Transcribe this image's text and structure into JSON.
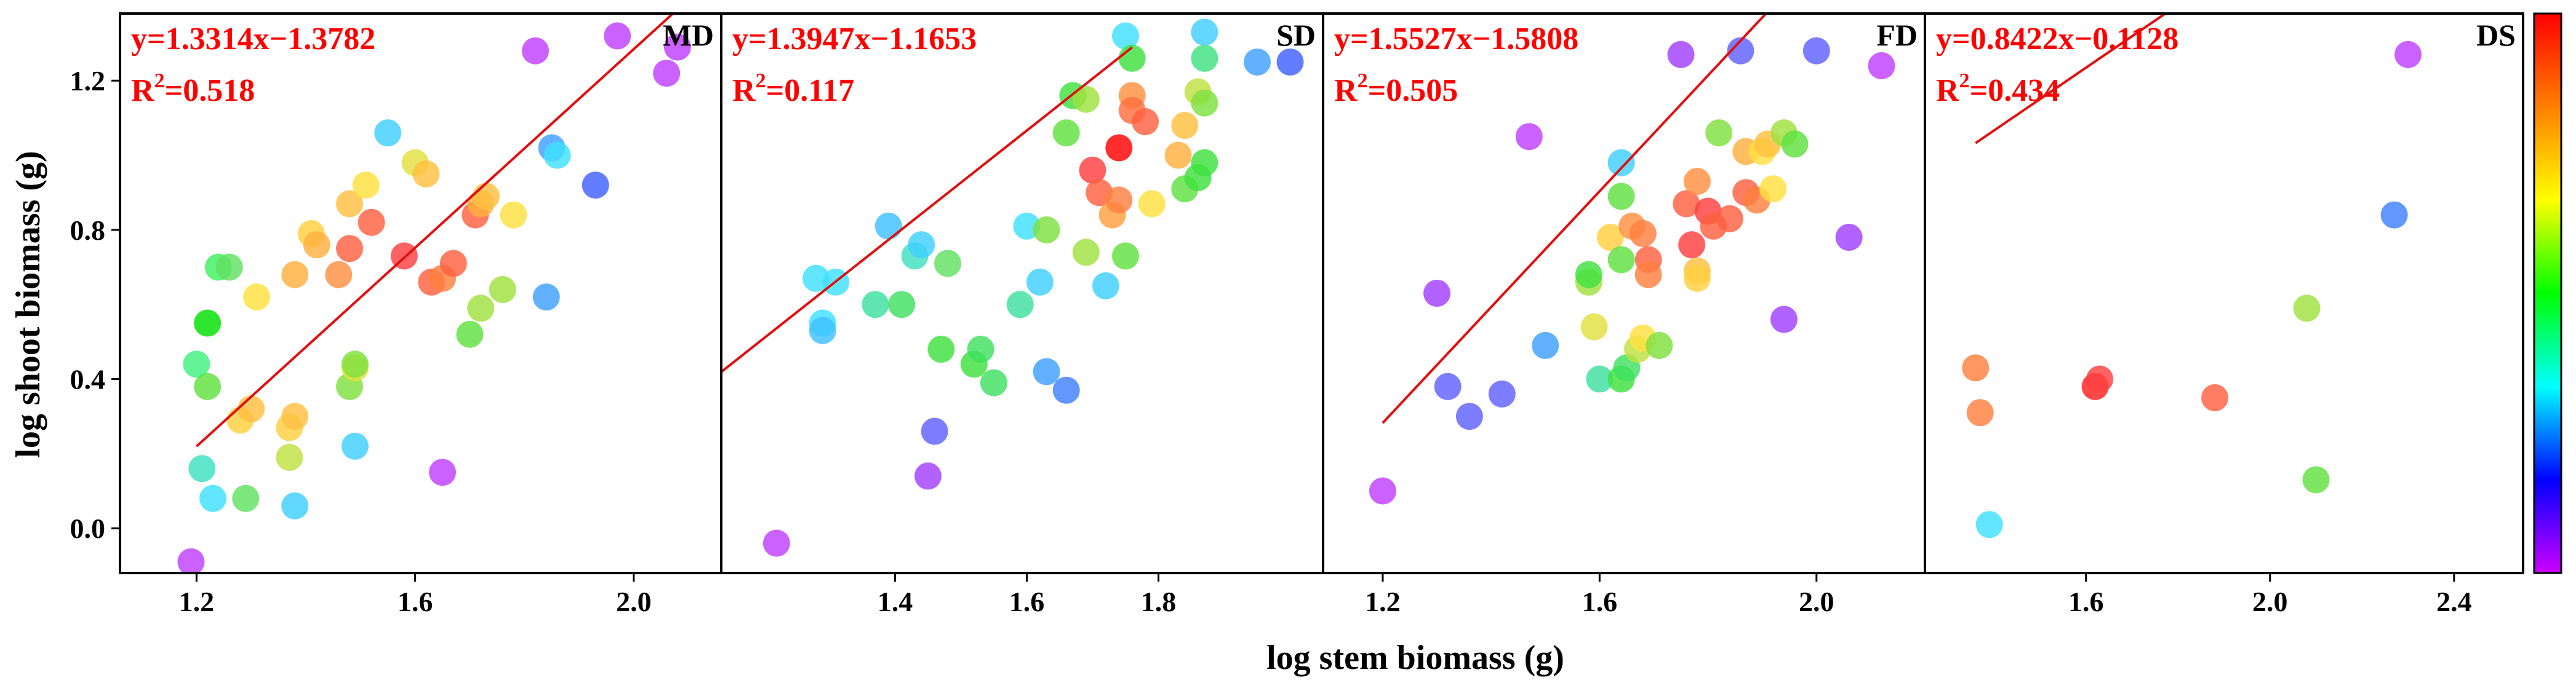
{
  "chart_data": {
    "type": "scatter",
    "xlabel": "log stem biomass (g)",
    "ylabel": "log shoot biomass (g)",
    "colorbar": {
      "present": true,
      "colors": [
        "#ff0000",
        "#ff7f00",
        "#ffff00",
        "#00ff00",
        "#00ffff",
        "#0000ff",
        "#cc00ff"
      ]
    },
    "y_ticks": [
      "0.0",
      "0.4",
      "0.8",
      "1.2"
    ],
    "ylim": [
      -0.12,
      1.38
    ],
    "fit_color": "#e01010",
    "panels": [
      {
        "label": "MD",
        "equation": "y=1.3314x−1.3782",
        "r2_prefix": "R",
        "r2_exp": "2",
        "r2_value": "=0.518",
        "xlim": [
          1.06,
          2.16
        ],
        "x_ticks": [
          "1.2",
          "1.6",
          "2.0"
        ],
        "fit_line": {
          "slope": 1.3314,
          "intercept": -1.3782,
          "x_range": [
            1.2,
            2.07
          ]
        },
        "points": [
          {
            "x": 1.19,
            "y": -0.09,
            "c": "#c040ff"
          },
          {
            "x": 1.2,
            "y": 0.44,
            "c": "#40f080"
          },
          {
            "x": 1.21,
            "y": 0.16,
            "c": "#40e0c0"
          },
          {
            "x": 1.22,
            "y": 0.55,
            "c": "#00e000"
          },
          {
            "x": 1.22,
            "y": 0.38,
            "c": "#60e040"
          },
          {
            "x": 1.23,
            "y": 0.08,
            "c": "#40e0ff"
          },
          {
            "x": 1.24,
            "y": 0.7,
            "c": "#40f060"
          },
          {
            "x": 1.26,
            "y": 0.7,
            "c": "#60e060"
          },
          {
            "x": 1.28,
            "y": 0.29,
            "c": "#ffd040"
          },
          {
            "x": 1.29,
            "y": 0.08,
            "c": "#60e060"
          },
          {
            "x": 1.3,
            "y": 0.32,
            "c": "#ffc040"
          },
          {
            "x": 1.31,
            "y": 0.62,
            "c": "#ffe040"
          },
          {
            "x": 1.37,
            "y": 0.19,
            "c": "#c0e040"
          },
          {
            "x": 1.37,
            "y": 0.27,
            "c": "#ffd040"
          },
          {
            "x": 1.38,
            "y": 0.3,
            "c": "#ffc040"
          },
          {
            "x": 1.38,
            "y": 0.68,
            "c": "#ffb040"
          },
          {
            "x": 1.38,
            "y": 0.06,
            "c": "#40d0ff"
          },
          {
            "x": 1.41,
            "y": 0.79,
            "c": "#ffd040"
          },
          {
            "x": 1.42,
            "y": 0.76,
            "c": "#ffb040"
          },
          {
            "x": 1.46,
            "y": 0.68,
            "c": "#ff9040"
          },
          {
            "x": 1.48,
            "y": 0.87,
            "c": "#ffc040"
          },
          {
            "x": 1.48,
            "y": 0.75,
            "c": "#ff6040"
          },
          {
            "x": 1.48,
            "y": 0.38,
            "c": "#80e040"
          },
          {
            "x": 1.49,
            "y": 0.43,
            "c": "#e0e040"
          },
          {
            "x": 1.49,
            "y": 0.44,
            "c": "#80e040"
          },
          {
            "x": 1.49,
            "y": 0.22,
            "c": "#40d0ff"
          },
          {
            "x": 1.51,
            "y": 0.92,
            "c": "#ffe040"
          },
          {
            "x": 1.52,
            "y": 0.82,
            "c": "#ff6040"
          },
          {
            "x": 1.55,
            "y": 1.06,
            "c": "#40d0ff"
          },
          {
            "x": 1.58,
            "y": 0.73,
            "c": "#ff4040"
          },
          {
            "x": 1.6,
            "y": 0.98,
            "c": "#e0e040"
          },
          {
            "x": 1.62,
            "y": 0.95,
            "c": "#ffc040"
          },
          {
            "x": 1.63,
            "y": 0.66,
            "c": "#ff6040"
          },
          {
            "x": 1.65,
            "y": 0.67,
            "c": "#ff8040"
          },
          {
            "x": 1.65,
            "y": 0.15,
            "c": "#c040ff"
          },
          {
            "x": 1.67,
            "y": 0.71,
            "c": "#ff6040"
          },
          {
            "x": 1.7,
            "y": 0.52,
            "c": "#60e040"
          },
          {
            "x": 1.71,
            "y": 0.84,
            "c": "#ff6040"
          },
          {
            "x": 1.72,
            "y": 0.87,
            "c": "#ffb040"
          },
          {
            "x": 1.72,
            "y": 0.59,
            "c": "#a0e040"
          },
          {
            "x": 1.73,
            "y": 0.89,
            "c": "#ffc040"
          },
          {
            "x": 1.76,
            "y": 0.64,
            "c": "#a0e040"
          },
          {
            "x": 1.78,
            "y": 0.84,
            "c": "#ffe040"
          },
          {
            "x": 1.82,
            "y": 1.28,
            "c": "#c040ff"
          },
          {
            "x": 1.84,
            "y": 0.62,
            "c": "#40a0ff"
          },
          {
            "x": 1.85,
            "y": 1.02,
            "c": "#40a0ff"
          },
          {
            "x": 1.86,
            "y": 1.0,
            "c": "#40e0ff"
          },
          {
            "x": 1.93,
            "y": 0.92,
            "c": "#4060ff"
          },
          {
            "x": 1.97,
            "y": 1.32,
            "c": "#c040ff"
          },
          {
            "x": 2.06,
            "y": 1.22,
            "c": "#c040ff"
          },
          {
            "x": 2.08,
            "y": 1.29,
            "c": "#c040ff"
          }
        ]
      },
      {
        "label": "SD",
        "equation": "y=1.3947x−1.1653",
        "r2_prefix": "R",
        "r2_exp": "2",
        "r2_value": "=0.117",
        "xlim": [
          1.136,
          2.05
        ],
        "x_ticks": [
          "1.4",
          "1.6",
          "1.8"
        ],
        "fit_line": {
          "slope": 1.3947,
          "intercept": -1.1653,
          "x_range": [
            1.08,
            1.76
          ]
        },
        "points": [
          {
            "x": 1.22,
            "y": -0.04,
            "c": "#c040ff"
          },
          {
            "x": 1.28,
            "y": 0.67,
            "c": "#40e0ff"
          },
          {
            "x": 1.29,
            "y": 0.55,
            "c": "#40e0ff"
          },
          {
            "x": 1.29,
            "y": 0.53,
            "c": "#40c0ff"
          },
          {
            "x": 1.31,
            "y": 0.66,
            "c": "#40e0ff"
          },
          {
            "x": 1.37,
            "y": 0.6,
            "c": "#40e0a0"
          },
          {
            "x": 1.39,
            "y": 0.81,
            "c": "#40c0ff"
          },
          {
            "x": 1.41,
            "y": 0.6,
            "c": "#40e060"
          },
          {
            "x": 1.43,
            "y": 0.73,
            "c": "#40e0c0"
          },
          {
            "x": 1.44,
            "y": 0.76,
            "c": "#40d0ff"
          },
          {
            "x": 1.45,
            "y": 0.14,
            "c": "#a040ff"
          },
          {
            "x": 1.46,
            "y": 0.26,
            "c": "#6060ff"
          },
          {
            "x": 1.47,
            "y": 0.48,
            "c": "#40e040"
          },
          {
            "x": 1.48,
            "y": 0.71,
            "c": "#60e060"
          },
          {
            "x": 1.52,
            "y": 0.44,
            "c": "#40e040"
          },
          {
            "x": 1.53,
            "y": 0.48,
            "c": "#40e060"
          },
          {
            "x": 1.55,
            "y": 0.39,
            "c": "#40e060"
          },
          {
            "x": 1.59,
            "y": 0.6,
            "c": "#40e0a0"
          },
          {
            "x": 1.6,
            "y": 0.81,
            "c": "#40e0ff"
          },
          {
            "x": 1.62,
            "y": 0.66,
            "c": "#40d0ff"
          },
          {
            "x": 1.63,
            "y": 0.42,
            "c": "#40a0ff"
          },
          {
            "x": 1.63,
            "y": 0.8,
            "c": "#80e040"
          },
          {
            "x": 1.66,
            "y": 1.06,
            "c": "#60e040"
          },
          {
            "x": 1.66,
            "y": 0.37,
            "c": "#4080ff"
          },
          {
            "x": 1.67,
            "y": 1.16,
            "c": "#40e040"
          },
          {
            "x": 1.69,
            "y": 1.15,
            "c": "#a0e040"
          },
          {
            "x": 1.69,
            "y": 0.74,
            "c": "#a0e040"
          },
          {
            "x": 1.7,
            "y": 0.96,
            "c": "#ff4040"
          },
          {
            "x": 1.71,
            "y": 0.9,
            "c": "#ff6040"
          },
          {
            "x": 1.72,
            "y": 0.65,
            "c": "#40d0ff"
          },
          {
            "x": 1.73,
            "y": 0.84,
            "c": "#ffa040"
          },
          {
            "x": 1.74,
            "y": 1.02,
            "c": "#ff0000"
          },
          {
            "x": 1.74,
            "y": 0.88,
            "c": "#ff8040"
          },
          {
            "x": 1.75,
            "y": 1.32,
            "c": "#40e0ff"
          },
          {
            "x": 1.75,
            "y": 0.73,
            "c": "#60e040"
          },
          {
            "x": 1.76,
            "y": 1.26,
            "c": "#40e040"
          },
          {
            "x": 1.76,
            "y": 1.16,
            "c": "#ff9040"
          },
          {
            "x": 1.76,
            "y": 1.12,
            "c": "#ff7040"
          },
          {
            "x": 1.78,
            "y": 1.09,
            "c": "#ff6040"
          },
          {
            "x": 1.79,
            "y": 0.87,
            "c": "#ffe040"
          },
          {
            "x": 1.83,
            "y": 1.0,
            "c": "#ffb040"
          },
          {
            "x": 1.84,
            "y": 1.08,
            "c": "#ffc040"
          },
          {
            "x": 1.84,
            "y": 0.91,
            "c": "#60e040"
          },
          {
            "x": 1.86,
            "y": 1.17,
            "c": "#c0e040"
          },
          {
            "x": 1.86,
            "y": 0.94,
            "c": "#40e040"
          },
          {
            "x": 1.87,
            "y": 1.14,
            "c": "#80e040"
          },
          {
            "x": 1.87,
            "y": 1.33,
            "c": "#40d0ff"
          },
          {
            "x": 1.87,
            "y": 1.26,
            "c": "#40e080"
          },
          {
            "x": 1.87,
            "y": 0.98,
            "c": "#40e040"
          },
          {
            "x": 1.95,
            "y": 1.25,
            "c": "#40a0ff"
          },
          {
            "x": 2.0,
            "y": 1.25,
            "c": "#4060ff"
          }
        ]
      },
      {
        "label": "FD",
        "equation": "y=1.5527x−1.5808",
        "r2_prefix": "R",
        "r2_exp": "2",
        "r2_value": "=0.505",
        "xlim": [
          1.09,
          2.2
        ],
        "x_ticks": [
          "1.2",
          "1.6",
          "2.0"
        ],
        "fit_line": {
          "slope": 1.5527,
          "intercept": -1.5808,
          "x_range": [
            1.2,
            2.12
          ]
        },
        "points": [
          {
            "x": 1.2,
            "y": 0.1,
            "c": "#c040ff"
          },
          {
            "x": 1.3,
            "y": 0.63,
            "c": "#a040ff"
          },
          {
            "x": 1.32,
            "y": 0.38,
            "c": "#6060ff"
          },
          {
            "x": 1.36,
            "y": 0.3,
            "c": "#6060ff"
          },
          {
            "x": 1.42,
            "y": 0.36,
            "c": "#6060ff"
          },
          {
            "x": 1.47,
            "y": 1.05,
            "c": "#c040ff"
          },
          {
            "x": 1.5,
            "y": 0.49,
            "c": "#40a0ff"
          },
          {
            "x": 1.58,
            "y": 0.66,
            "c": "#a0e040"
          },
          {
            "x": 1.58,
            "y": 0.68,
            "c": "#40e040"
          },
          {
            "x": 1.59,
            "y": 0.54,
            "c": "#e0e040"
          },
          {
            "x": 1.6,
            "y": 0.4,
            "c": "#40e0a0"
          },
          {
            "x": 1.62,
            "y": 0.78,
            "c": "#ffd040"
          },
          {
            "x": 1.64,
            "y": 0.98,
            "c": "#40d0ff"
          },
          {
            "x": 1.64,
            "y": 0.89,
            "c": "#60e040"
          },
          {
            "x": 1.64,
            "y": 0.72,
            "c": "#60e040"
          },
          {
            "x": 1.64,
            "y": 0.4,
            "c": "#40e040"
          },
          {
            "x": 1.65,
            "y": 0.43,
            "c": "#40e060"
          },
          {
            "x": 1.66,
            "y": 0.81,
            "c": "#ff9040"
          },
          {
            "x": 1.67,
            "y": 0.48,
            "c": "#c0e040"
          },
          {
            "x": 1.68,
            "y": 0.51,
            "c": "#ffe040"
          },
          {
            "x": 1.68,
            "y": 0.79,
            "c": "#ff8040"
          },
          {
            "x": 1.69,
            "y": 0.72,
            "c": "#ff6040"
          },
          {
            "x": 1.69,
            "y": 0.68,
            "c": "#ff8040"
          },
          {
            "x": 1.71,
            "y": 0.49,
            "c": "#80e040"
          },
          {
            "x": 1.75,
            "y": 1.27,
            "c": "#a040ff"
          },
          {
            "x": 1.76,
            "y": 0.87,
            "c": "#ff6040"
          },
          {
            "x": 1.77,
            "y": 0.76,
            "c": "#ff4040"
          },
          {
            "x": 1.78,
            "y": 0.93,
            "c": "#ff9040"
          },
          {
            "x": 1.78,
            "y": 0.69,
            "c": "#ffc040"
          },
          {
            "x": 1.78,
            "y": 0.67,
            "c": "#ffd040"
          },
          {
            "x": 1.8,
            "y": 0.85,
            "c": "#ff4040"
          },
          {
            "x": 1.81,
            "y": 0.81,
            "c": "#ff6040"
          },
          {
            "x": 1.82,
            "y": 1.06,
            "c": "#80e040"
          },
          {
            "x": 1.84,
            "y": 0.83,
            "c": "#ff6040"
          },
          {
            "x": 1.86,
            "y": 1.28,
            "c": "#6060ff"
          },
          {
            "x": 1.87,
            "y": 1.01,
            "c": "#ffb040"
          },
          {
            "x": 1.87,
            "y": 0.9,
            "c": "#ff6040"
          },
          {
            "x": 1.89,
            "y": 0.88,
            "c": "#ff8040"
          },
          {
            "x": 1.9,
            "y": 1.01,
            "c": "#ffe040"
          },
          {
            "x": 1.91,
            "y": 1.03,
            "c": "#ffc040"
          },
          {
            "x": 1.92,
            "y": 0.91,
            "c": "#ffe040"
          },
          {
            "x": 1.94,
            "y": 1.06,
            "c": "#a0e040"
          },
          {
            "x": 1.94,
            "y": 0.56,
            "c": "#a040ff"
          },
          {
            "x": 1.96,
            "y": 1.03,
            "c": "#60e040"
          },
          {
            "x": 2.0,
            "y": 1.28,
            "c": "#6060ff"
          },
          {
            "x": 2.06,
            "y": 0.78,
            "c": "#a040ff"
          },
          {
            "x": 2.12,
            "y": 1.24,
            "c": "#c040ff"
          }
        ]
      },
      {
        "label": "DS",
        "equation": "y=0.8422x−0.1128",
        "r2_prefix": "R",
        "r2_exp": "2",
        "r2_value": "=0.434",
        "xlim": [
          1.25,
          2.55
        ],
        "x_ticks": [
          "1.6",
          "2.0",
          "2.4"
        ],
        "fit_line": {
          "slope": 0.8422,
          "intercept": -0.1128,
          "x_range": [
            1.36,
            2.3
          ]
        },
        "points": [
          {
            "x": 1.36,
            "y": 0.43,
            "c": "#ff8040"
          },
          {
            "x": 1.37,
            "y": 0.31,
            "c": "#ff8040"
          },
          {
            "x": 1.39,
            "y": 0.01,
            "c": "#40e0ff"
          },
          {
            "x": 1.62,
            "y": 0.38,
            "c": "#ff2020"
          },
          {
            "x": 1.63,
            "y": 0.4,
            "c": "#ff4040"
          },
          {
            "x": 1.88,
            "y": 0.35,
            "c": "#ff6040"
          },
          {
            "x": 2.08,
            "y": 0.59,
            "c": "#a0e040"
          },
          {
            "x": 2.1,
            "y": 0.13,
            "c": "#60e040"
          },
          {
            "x": 2.27,
            "y": 0.84,
            "c": "#4080ff"
          },
          {
            "x": 2.3,
            "y": 1.27,
            "c": "#c040ff"
          }
        ]
      }
    ]
  }
}
